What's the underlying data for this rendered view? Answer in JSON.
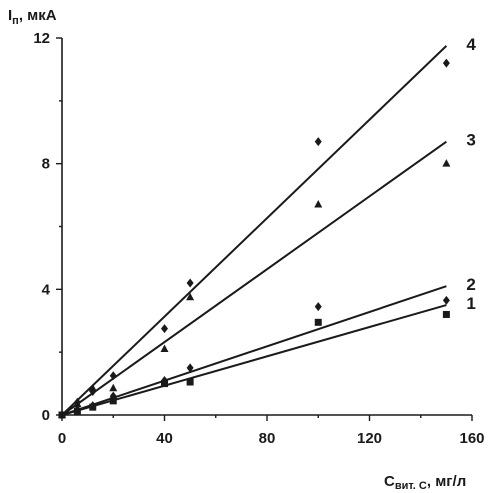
{
  "chart_data": {
    "type": "scatter",
    "ylabel": {
      "main": "I",
      "sub": "п",
      "rest": ", мкА"
    },
    "xlabel": {
      "main": "C",
      "sub": "вит. С",
      "rest": ", мг/л"
    },
    "xlim": [
      0,
      160
    ],
    "ylim": [
      0,
      12
    ],
    "xticks": [
      0,
      40,
      80,
      120,
      160
    ],
    "yticks": [
      0,
      4,
      8,
      12
    ],
    "grid": false,
    "legend": "none",
    "series": [
      {
        "name": "1",
        "marker": "square",
        "color": "#1a1a1a",
        "points": [
          [
            0,
            0
          ],
          [
            6,
            0.12
          ],
          [
            12,
            0.25
          ],
          [
            20,
            0.45
          ],
          [
            40,
            1.0
          ],
          [
            50,
            1.05
          ],
          [
            100,
            2.95
          ],
          [
            150,
            3.2
          ]
        ],
        "fit": [
          [
            0,
            0
          ],
          [
            150,
            3.5
          ]
        ]
      },
      {
        "name": "2",
        "marker": "diamond",
        "color": "#1a1a1a",
        "points": [
          [
            0,
            0
          ],
          [
            6,
            0.18
          ],
          [
            12,
            0.3
          ],
          [
            20,
            0.6
          ],
          [
            40,
            1.1
          ],
          [
            50,
            1.5
          ],
          [
            100,
            3.45
          ],
          [
            150,
            3.65
          ]
        ],
        "fit": [
          [
            0,
            0
          ],
          [
            150,
            4.1
          ]
        ]
      },
      {
        "name": "3",
        "marker": "triangle",
        "color": "#1a1a1a",
        "points": [
          [
            0,
            0
          ],
          [
            6,
            0.35
          ],
          [
            12,
            0.85
          ],
          [
            20,
            0.85
          ],
          [
            40,
            2.1
          ],
          [
            50,
            3.75
          ],
          [
            100,
            6.7
          ],
          [
            150,
            8.0
          ]
        ],
        "fit": [
          [
            0,
            0
          ],
          [
            150,
            8.7
          ]
        ]
      },
      {
        "name": "4",
        "marker": "diamond",
        "color": "#1a1a1a",
        "points": [
          [
            0,
            0
          ],
          [
            6,
            0.4
          ],
          [
            12,
            0.75
          ],
          [
            20,
            1.25
          ],
          [
            40,
            2.75
          ],
          [
            50,
            4.2
          ],
          [
            100,
            8.7
          ],
          [
            150,
            11.2
          ]
        ],
        "fit": [
          [
            0,
            0
          ],
          [
            150,
            11.75
          ]
        ]
      }
    ]
  }
}
